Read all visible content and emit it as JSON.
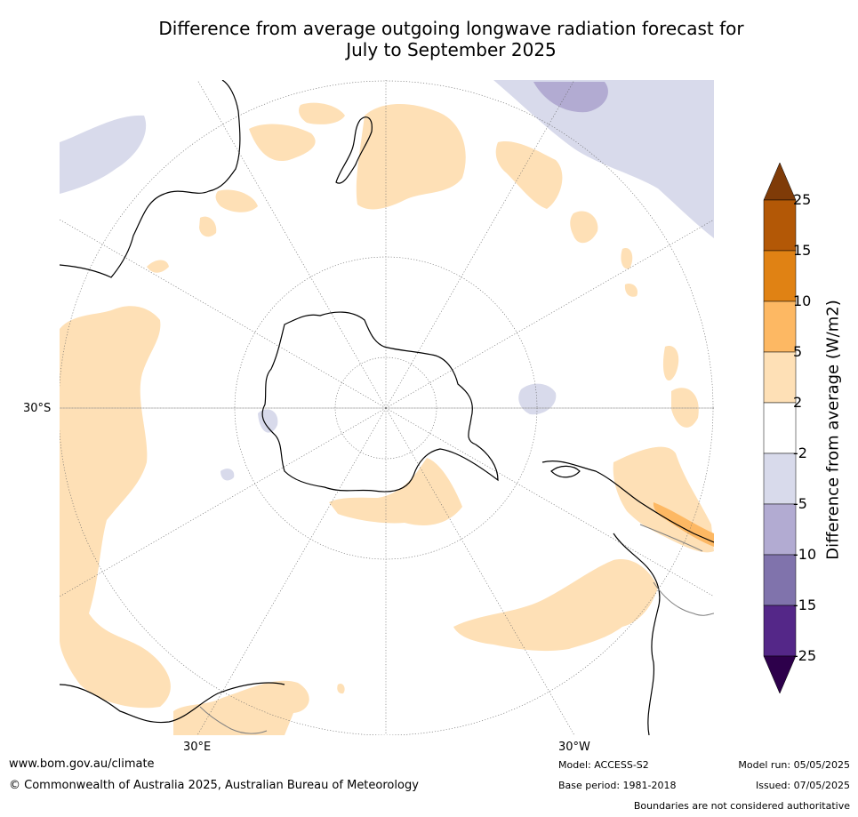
{
  "title_line1": "Difference from average outgoing longwave radiation forecast for",
  "title_line2": "July to September 2025",
  "colorbar": {
    "label": "Difference from average (W/m2)",
    "ticks": [
      "25",
      "15",
      "10",
      "5",
      "2",
      "-2",
      "-5",
      "-10",
      "-15",
      "-25"
    ],
    "colors": {
      "above_25": "#7f3b08",
      "15_to_25": "#b35806",
      "10_to_15": "#e08214",
      "5_to_10": "#fdb863",
      "2_to_5": "#fee0b6",
      "-2_to_2": "#ffffff",
      "-5_to_-2": "#d8daeb",
      "-10_to_-5": "#b2abd2",
      "-15_to_-10": "#8073ac",
      "-25_to_-15": "#542788",
      "below_-25": "#2d004b"
    }
  },
  "map": {
    "projection": "south-polar-stereographic",
    "lat_label": "30°S",
    "lon_label_left": "30°E",
    "lon_label_right": "30°W",
    "land_outline_color": "#000000"
  },
  "footer": {
    "website": "www.bom.gov.au/climate",
    "copyright": "© Commonwealth of Australia 2025, Australian Bureau of Meteorology",
    "model": "Model: ACCESS-S2",
    "base_period": "Base period: 1981-2018",
    "model_run": "Model run: 05/05/2025",
    "issued": "Issued: 07/05/2025",
    "disclaimer": "Boundaries are not considered authoritative"
  }
}
